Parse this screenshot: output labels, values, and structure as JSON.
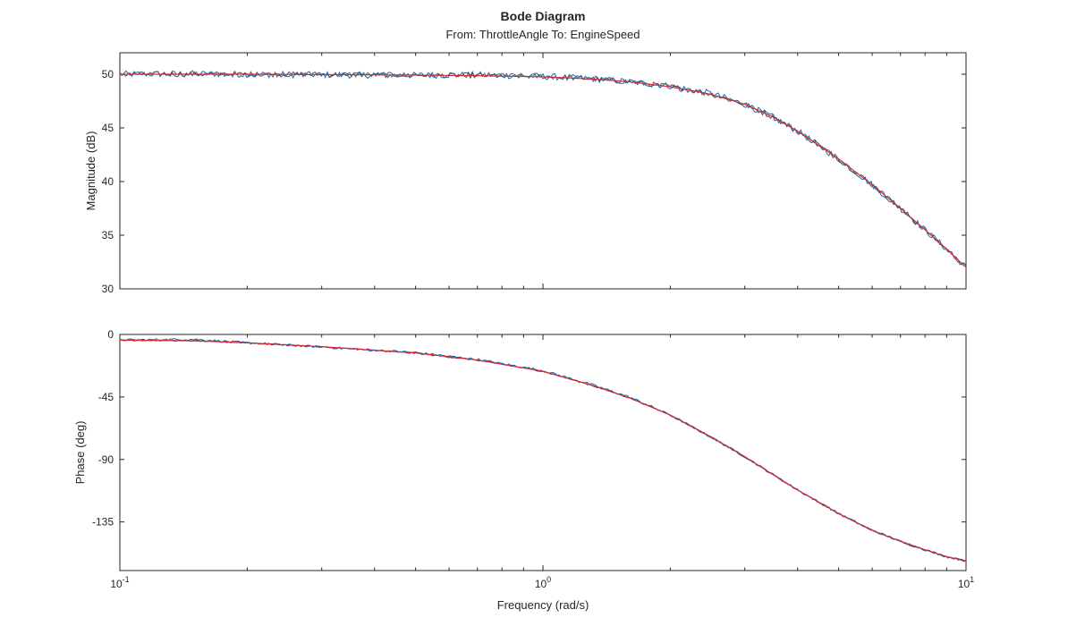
{
  "chart_data": {
    "type": "line",
    "title": "Bode Diagram",
    "subtitle": "From: ThrottleAngle  To: EngineSpeed",
    "xlabel": "Frequency (rad/s)",
    "xscale": "log",
    "xlim": [
      0.1,
      10
    ],
    "x_ticks": [
      {
        "base": "10",
        "exp": "-1"
      },
      {
        "base": "10",
        "exp": "0"
      },
      {
        "base": "10",
        "exp": "1"
      }
    ],
    "grid": false,
    "panels": [
      {
        "name": "magnitude",
        "ylabel": "Magnitude (dB)",
        "ylim": [
          30,
          52
        ],
        "yticks": [
          30,
          35,
          40,
          45,
          50
        ],
        "x": [
          0.1,
          0.15,
          0.2,
          0.3,
          0.5,
          0.7,
          1.0,
          1.3,
          1.6,
          2.0,
          2.5,
          3.0,
          3.5,
          4.0,
          5.0,
          6.0,
          7.0,
          8.0,
          9.0,
          10.0
        ],
        "series": [
          {
            "color": "#0072BD",
            "noise": 0.3,
            "values": [
              50.0,
              50.05,
              50.0,
              49.95,
              49.9,
              49.95,
              49.8,
              49.6,
              49.3,
              48.9,
              48.2,
              47.2,
              46.0,
              44.7,
              42.1,
              39.7,
              37.5,
              35.5,
              33.7,
              32.0
            ]
          },
          {
            "color": "#555555",
            "noise": 0.25,
            "values": [
              50.0,
              50.0,
              50.0,
              49.98,
              49.92,
              49.88,
              49.8,
              49.58,
              49.3,
              48.85,
              48.15,
              47.2,
              46.0,
              44.7,
              42.1,
              39.7,
              37.5,
              35.5,
              33.7,
              32.0
            ]
          },
          {
            "color": "#D62735",
            "noise": 0.0,
            "values": [
              50.0,
              50.0,
              50.0,
              49.97,
              49.92,
              49.86,
              49.76,
              49.56,
              49.3,
              48.83,
              48.13,
              47.2,
              46.0,
              44.7,
              42.1,
              39.7,
              37.5,
              35.5,
              33.7,
              32.0
            ]
          }
        ]
      },
      {
        "name": "phase",
        "ylabel": "Phase (deg)",
        "ylim": [
          -170,
          0
        ],
        "yticks": [
          0,
          -45,
          -90,
          -135
        ],
        "x": [
          0.1,
          0.15,
          0.2,
          0.3,
          0.5,
          0.7,
          1.0,
          1.3,
          1.6,
          2.0,
          2.5,
          3.0,
          3.5,
          4.0,
          5.0,
          6.0,
          7.0,
          8.0,
          9.0,
          10.0
        ],
        "series": [
          {
            "color": "#0072BD",
            "noise": 0.8,
            "values": [
              -4,
              -3.5,
              -6,
              -9,
              -13,
              -18,
              -26,
              -36,
              -45,
              -58,
              -74,
              -88,
              -101,
              -112,
              -129,
              -141,
              -149,
              -155,
              -160,
              -163
            ]
          },
          {
            "color": "#555555",
            "noise": 0.6,
            "values": [
              -4,
              -4.5,
              -6,
              -9,
              -13.5,
              -18.5,
              -26.5,
              -36.5,
              -45.5,
              -58,
              -74,
              -88,
              -101,
              -112,
              -129,
              -141,
              -149,
              -155,
              -160,
              -163
            ]
          },
          {
            "color": "#D62735",
            "noise": 0.0,
            "values": [
              -4,
              -4.6,
              -6,
              -8.8,
              -13.3,
              -18.4,
              -26.5,
              -36.4,
              -45.6,
              -58,
              -73.8,
              -88,
              -101,
              -112,
              -129,
              -141,
              -149,
              -155,
              -160,
              -163
            ]
          }
        ]
      }
    ]
  }
}
